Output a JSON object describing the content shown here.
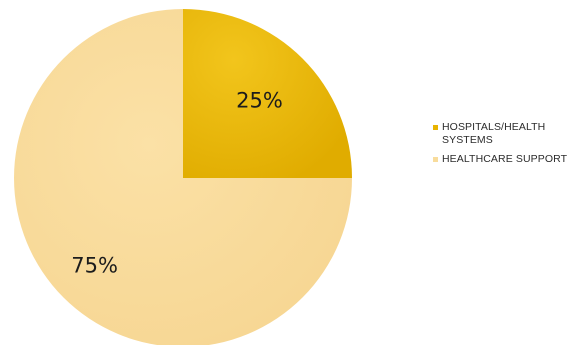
{
  "chart_data": {
    "type": "pie",
    "title": "",
    "start_angle_deg": -90,
    "direction": "clockwise",
    "slices": [
      {
        "label": "HOSPITALS/HEALTH SYSTEMS",
        "value": 25,
        "display": "25%",
        "color": "#e8b400"
      },
      {
        "label": "HEALTHCARE SUPPORT",
        "value": 75,
        "display": "75%",
        "color": "#f8dc9c"
      }
    ],
    "legend_position": "right"
  }
}
